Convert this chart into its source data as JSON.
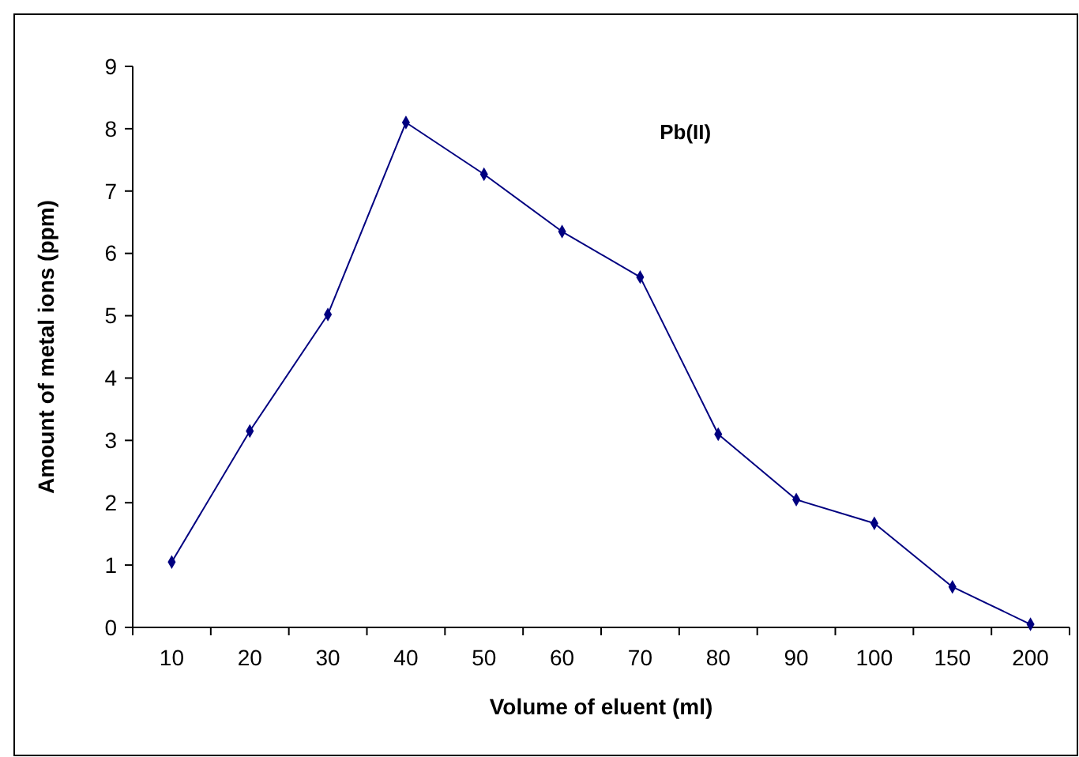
{
  "chart_data": {
    "type": "line",
    "xlabel": "Volume of eluent (ml)",
    "ylabel": "Amount of metal ions (ppm)",
    "categories": [
      "10",
      "20",
      "30",
      "40",
      "50",
      "60",
      "70",
      "80",
      "90",
      "100",
      "150",
      "200"
    ],
    "series": [
      {
        "color": "#000080",
        "values": [
          1.05,
          3.15,
          5.02,
          8.1,
          7.27,
          6.35,
          5.62,
          3.1,
          2.05,
          1.67,
          0.65,
          0.05
        ]
      }
    ],
    "ylim": [
      0,
      9
    ],
    "yticks": [
      0,
      1,
      2,
      3,
      4,
      5,
      6,
      7,
      8,
      9
    ],
    "grid": false,
    "marker": "diamond",
    "line_style": "solid",
    "annotations": [
      "Pb(II)"
    ]
  }
}
